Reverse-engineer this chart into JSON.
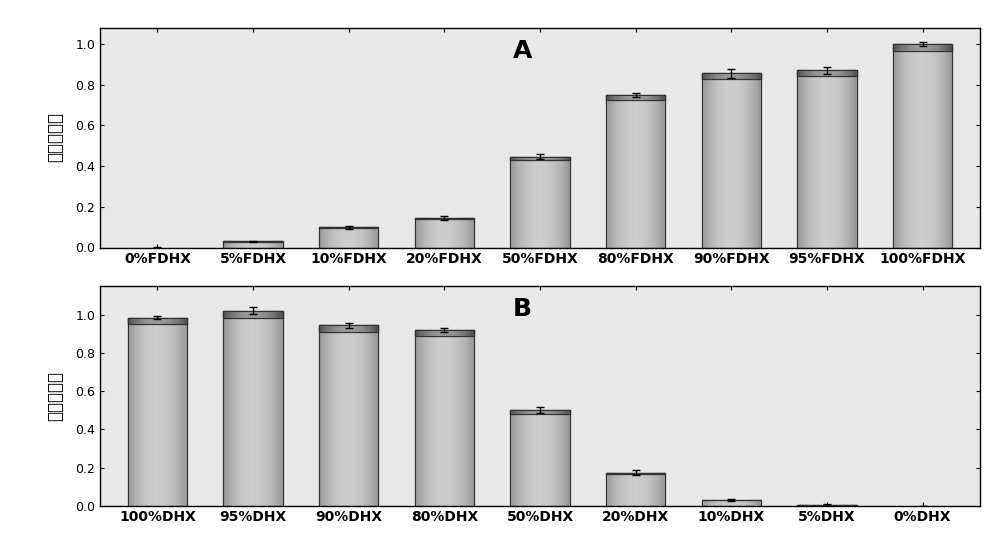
{
  "panel_A": {
    "categories": [
      "0%FDHX",
      "5%FDHX",
      "10%FDHX",
      "20%FDHX",
      "50%FDHX",
      "80%FDHX",
      "90%FDHX",
      "95%FDHX",
      "100%FDHX"
    ],
    "values": [
      0.0,
      0.03,
      0.1,
      0.145,
      0.445,
      0.75,
      0.855,
      0.87,
      1.0
    ],
    "errors": [
      0.003,
      0.004,
      0.008,
      0.01,
      0.012,
      0.01,
      0.022,
      0.018,
      0.01
    ],
    "label": "A"
  },
  "panel_B": {
    "categories": [
      "100%DHX",
      "95%DHX",
      "90%DHX",
      "80%DHX",
      "50%DHX",
      "20%DHX",
      "10%DHX",
      "5%DHX",
      "0%DHX"
    ],
    "values": [
      0.985,
      1.02,
      0.945,
      0.92,
      0.5,
      0.175,
      0.033,
      0.005,
      0.0
    ],
    "errors": [
      0.01,
      0.018,
      0.012,
      0.013,
      0.016,
      0.013,
      0.006,
      0.003,
      0.002
    ],
    "label": "B"
  },
  "ylabel": "相对表达量",
  "bar_color_face": "#cccccc",
  "bar_color_shade": "#999999",
  "bar_color_dark": "#555555",
  "bar_edge_color": "#333333",
  "background_color": "#ffffff",
  "plot_bg_color": "#e8e8e8",
  "ylim_A": [
    0.0,
    1.08
  ],
  "ylim_B": [
    0.0,
    1.15
  ],
  "yticks": [
    0.0,
    0.2,
    0.4,
    0.6,
    0.8,
    1.0
  ],
  "bar_width": 0.62,
  "figsize": [
    10.0,
    5.5
  ],
  "dpi": 100,
  "label_fontsize": 18,
  "tick_fontsize": 9,
  "ylabel_fontsize": 12,
  "xlabel_fontsize": 10,
  "gradient_steps": 40
}
